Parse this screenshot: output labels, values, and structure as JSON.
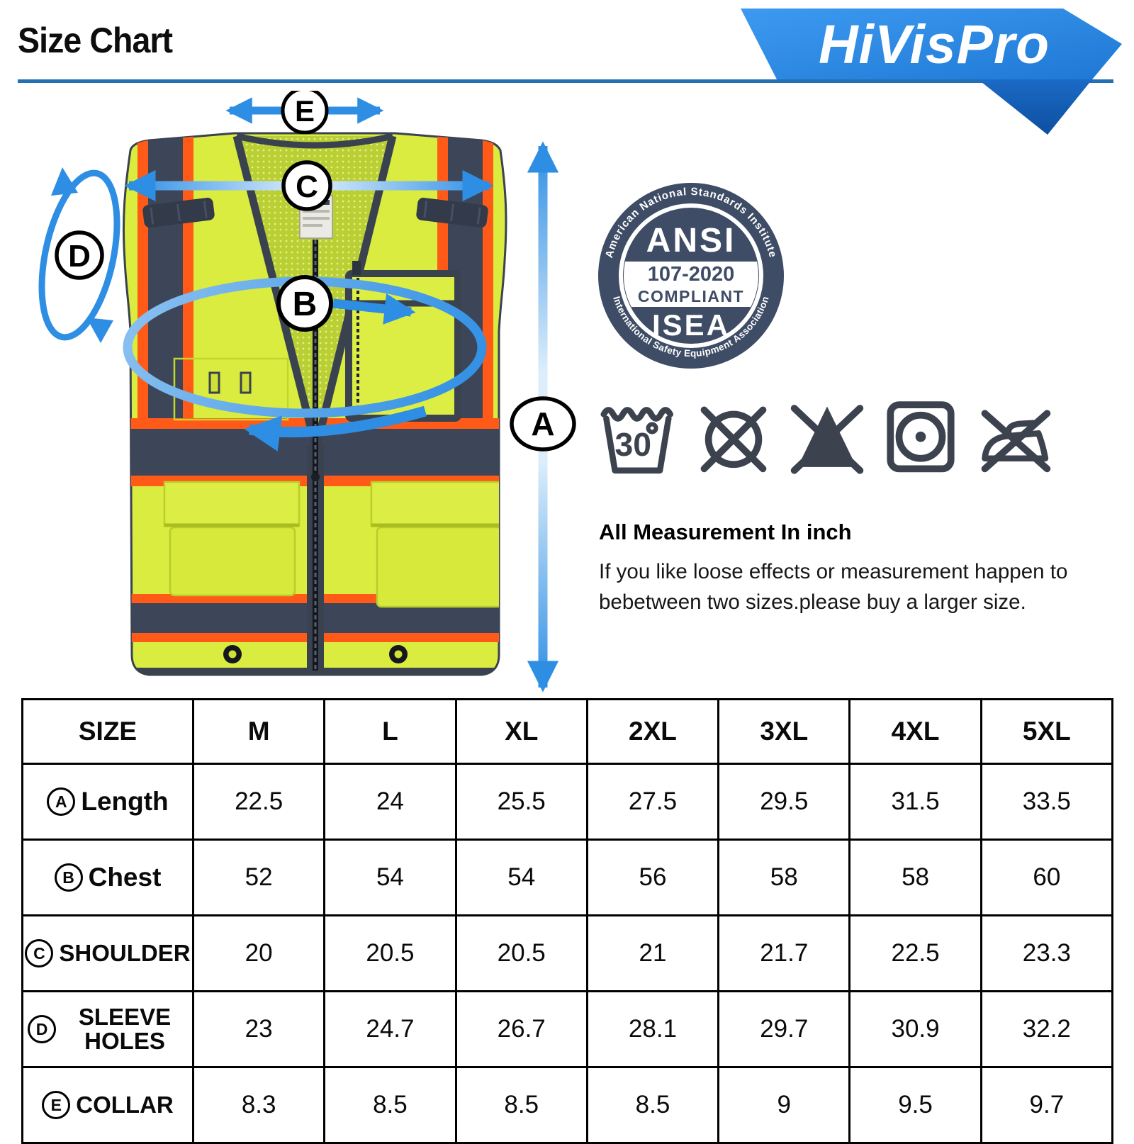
{
  "header": {
    "title": "Size Chart",
    "brand": "HiVisPro"
  },
  "diagram": {
    "letters": {
      "a": "A",
      "b": "B",
      "c": "C",
      "d": "D",
      "e": "E"
    },
    "meaning": {
      "A": "Length",
      "B": "Chest",
      "C": "Shoulder",
      "D": "Sleeve holes",
      "E": "Collar"
    }
  },
  "badge": {
    "arc_top": "American National Standards Institute",
    "name": "ANSI",
    "code": "107-2020",
    "compliant": "COMPLIANT",
    "org": "ISEA",
    "arc_bottom": "International Safety Equipment Association"
  },
  "care": {
    "wash_temp": "30",
    "icons": [
      "wash-30-icon",
      "do-not-dry-clean-icon",
      "do-not-bleach-icon",
      "tumble-dry-icon",
      "do-not-iron-icon"
    ]
  },
  "notes": {
    "title": "All Measurement In inch",
    "body": "If you like loose effects or measurement happen to bebetween two sizes.please buy a larger size."
  },
  "table": {
    "headers": [
      "SIZE",
      "M",
      "L",
      "XL",
      "2XL",
      "3XL",
      "4XL",
      "5XL"
    ],
    "rows": [
      {
        "letter": "A",
        "label": "Length",
        "values": [
          "22.5",
          "24",
          "25.5",
          "27.5",
          "29.5",
          "31.5",
          "33.5"
        ]
      },
      {
        "letter": "B",
        "label": "Chest",
        "values": [
          "52",
          "54",
          "54",
          "56",
          "58",
          "58",
          "60"
        ]
      },
      {
        "letter": "C",
        "label": "SHOULDER",
        "values": [
          "20",
          "20.5",
          "20.5",
          "21",
          "21.7",
          "22.5",
          "23.3"
        ]
      },
      {
        "letter": "D",
        "label": "SLEEVE HOLES",
        "values": [
          "23",
          "24.7",
          "26.7",
          "28.1",
          "29.7",
          "30.9",
          "32.2"
        ]
      },
      {
        "letter": "E",
        "label": "COLLAR",
        "values": [
          "8.3",
          "8.5",
          "8.5",
          "8.5",
          "9",
          "9.5",
          "9.7"
        ]
      }
    ]
  },
  "chart_data": {
    "type": "table",
    "categories": [
      "M",
      "L",
      "XL",
      "2XL",
      "3XL",
      "4XL",
      "5XL"
    ],
    "series": [
      {
        "name": "Length",
        "values": [
          22.5,
          24,
          25.5,
          27.5,
          29.5,
          31.5,
          33.5
        ]
      },
      {
        "name": "Chest",
        "values": [
          52,
          54,
          54,
          56,
          58,
          58,
          60
        ]
      },
      {
        "name": "Shoulder",
        "values": [
          20,
          20.5,
          20.5,
          21,
          21.7,
          22.5,
          23.3
        ]
      },
      {
        "name": "Sleeve holes",
        "values": [
          23,
          24.7,
          26.7,
          28.1,
          29.7,
          30.9,
          32.2
        ]
      },
      {
        "name": "Collar",
        "values": [
          8.3,
          8.5,
          8.5,
          8.5,
          9,
          9.5,
          9.7
        ]
      }
    ],
    "title": "Size Chart",
    "unit": "inch"
  },
  "colors": {
    "vest_lime": "#d9ec3f",
    "mesh_olive": "#b9cf33",
    "trim_navy": "#3a4250",
    "stripe_orange": "#ff5a17",
    "arrow_blue": "#2e8ee4",
    "logo_blue": "#2c86e1",
    "badge_navy": "#3e4c66",
    "care_icon": "#3c434f",
    "rule_blue": "#2470b4"
  }
}
